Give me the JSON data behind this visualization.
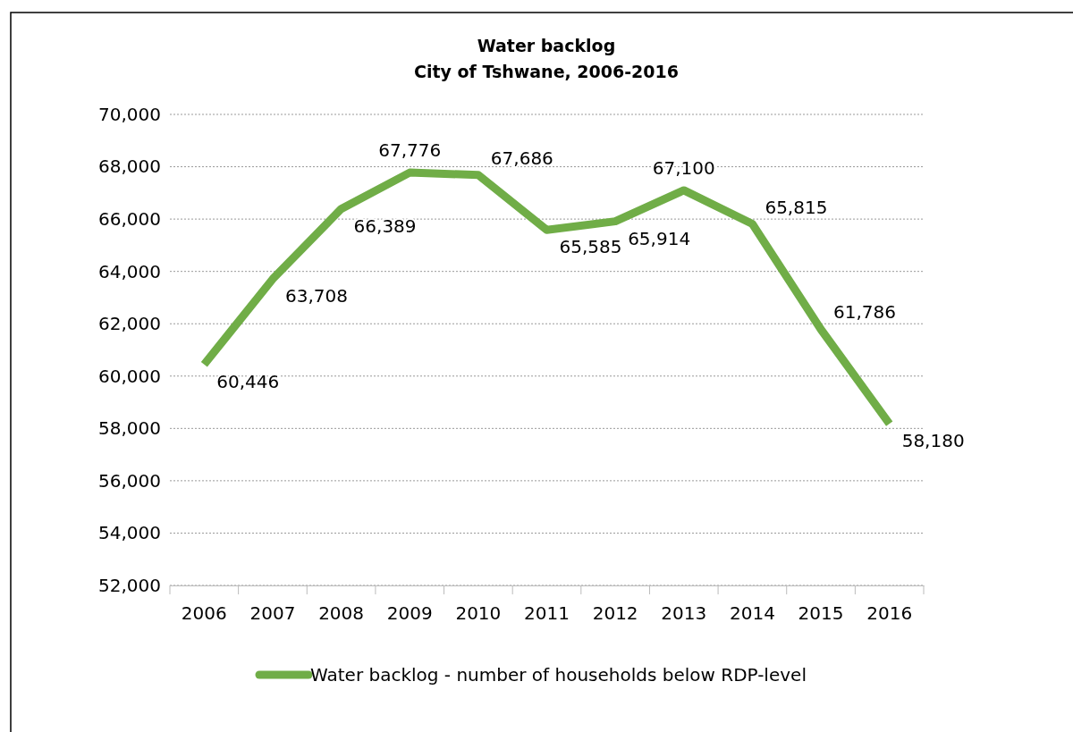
{
  "chart_data": {
    "type": "line",
    "title": "Water backlog\nCity of Tshwane, 2006-2016",
    "categories": [
      "2006",
      "2007",
      "2008",
      "2009",
      "2010",
      "2011",
      "2012",
      "2013",
      "2014",
      "2015",
      "2016"
    ],
    "series": [
      {
        "name": "Water backlog - number of households below RDP-level",
        "color": "#70ad47",
        "values": [
          60446,
          63708,
          66389,
          67776,
          67686,
          65585,
          65914,
          67100,
          65815,
          61786,
          58180
        ],
        "value_labels": [
          "60,446",
          "63,708",
          "66,389",
          "67,776",
          "67,686",
          "65,585",
          "65,914",
          "67,100",
          "65,815",
          "61,786",
          "58,180"
        ]
      }
    ],
    "ylim": [
      52000,
      70000
    ],
    "yticks": [
      {
        "value": 52000,
        "label": "52,000"
      },
      {
        "value": 54000,
        "label": "54,000"
      },
      {
        "value": 56000,
        "label": "56,000"
      },
      {
        "value": 58000,
        "label": "58,000"
      },
      {
        "value": 60000,
        "label": "60,000"
      },
      {
        "value": 62000,
        "label": "62,000"
      },
      {
        "value": 64000,
        "label": "64,000"
      },
      {
        "value": 66000,
        "label": "66,000"
      },
      {
        "value": 68000,
        "label": "68,000"
      },
      {
        "value": 70000,
        "label": "70,000"
      }
    ],
    "grid": "y",
    "legend": "bottom",
    "marker": "none",
    "line_style": "solid"
  }
}
